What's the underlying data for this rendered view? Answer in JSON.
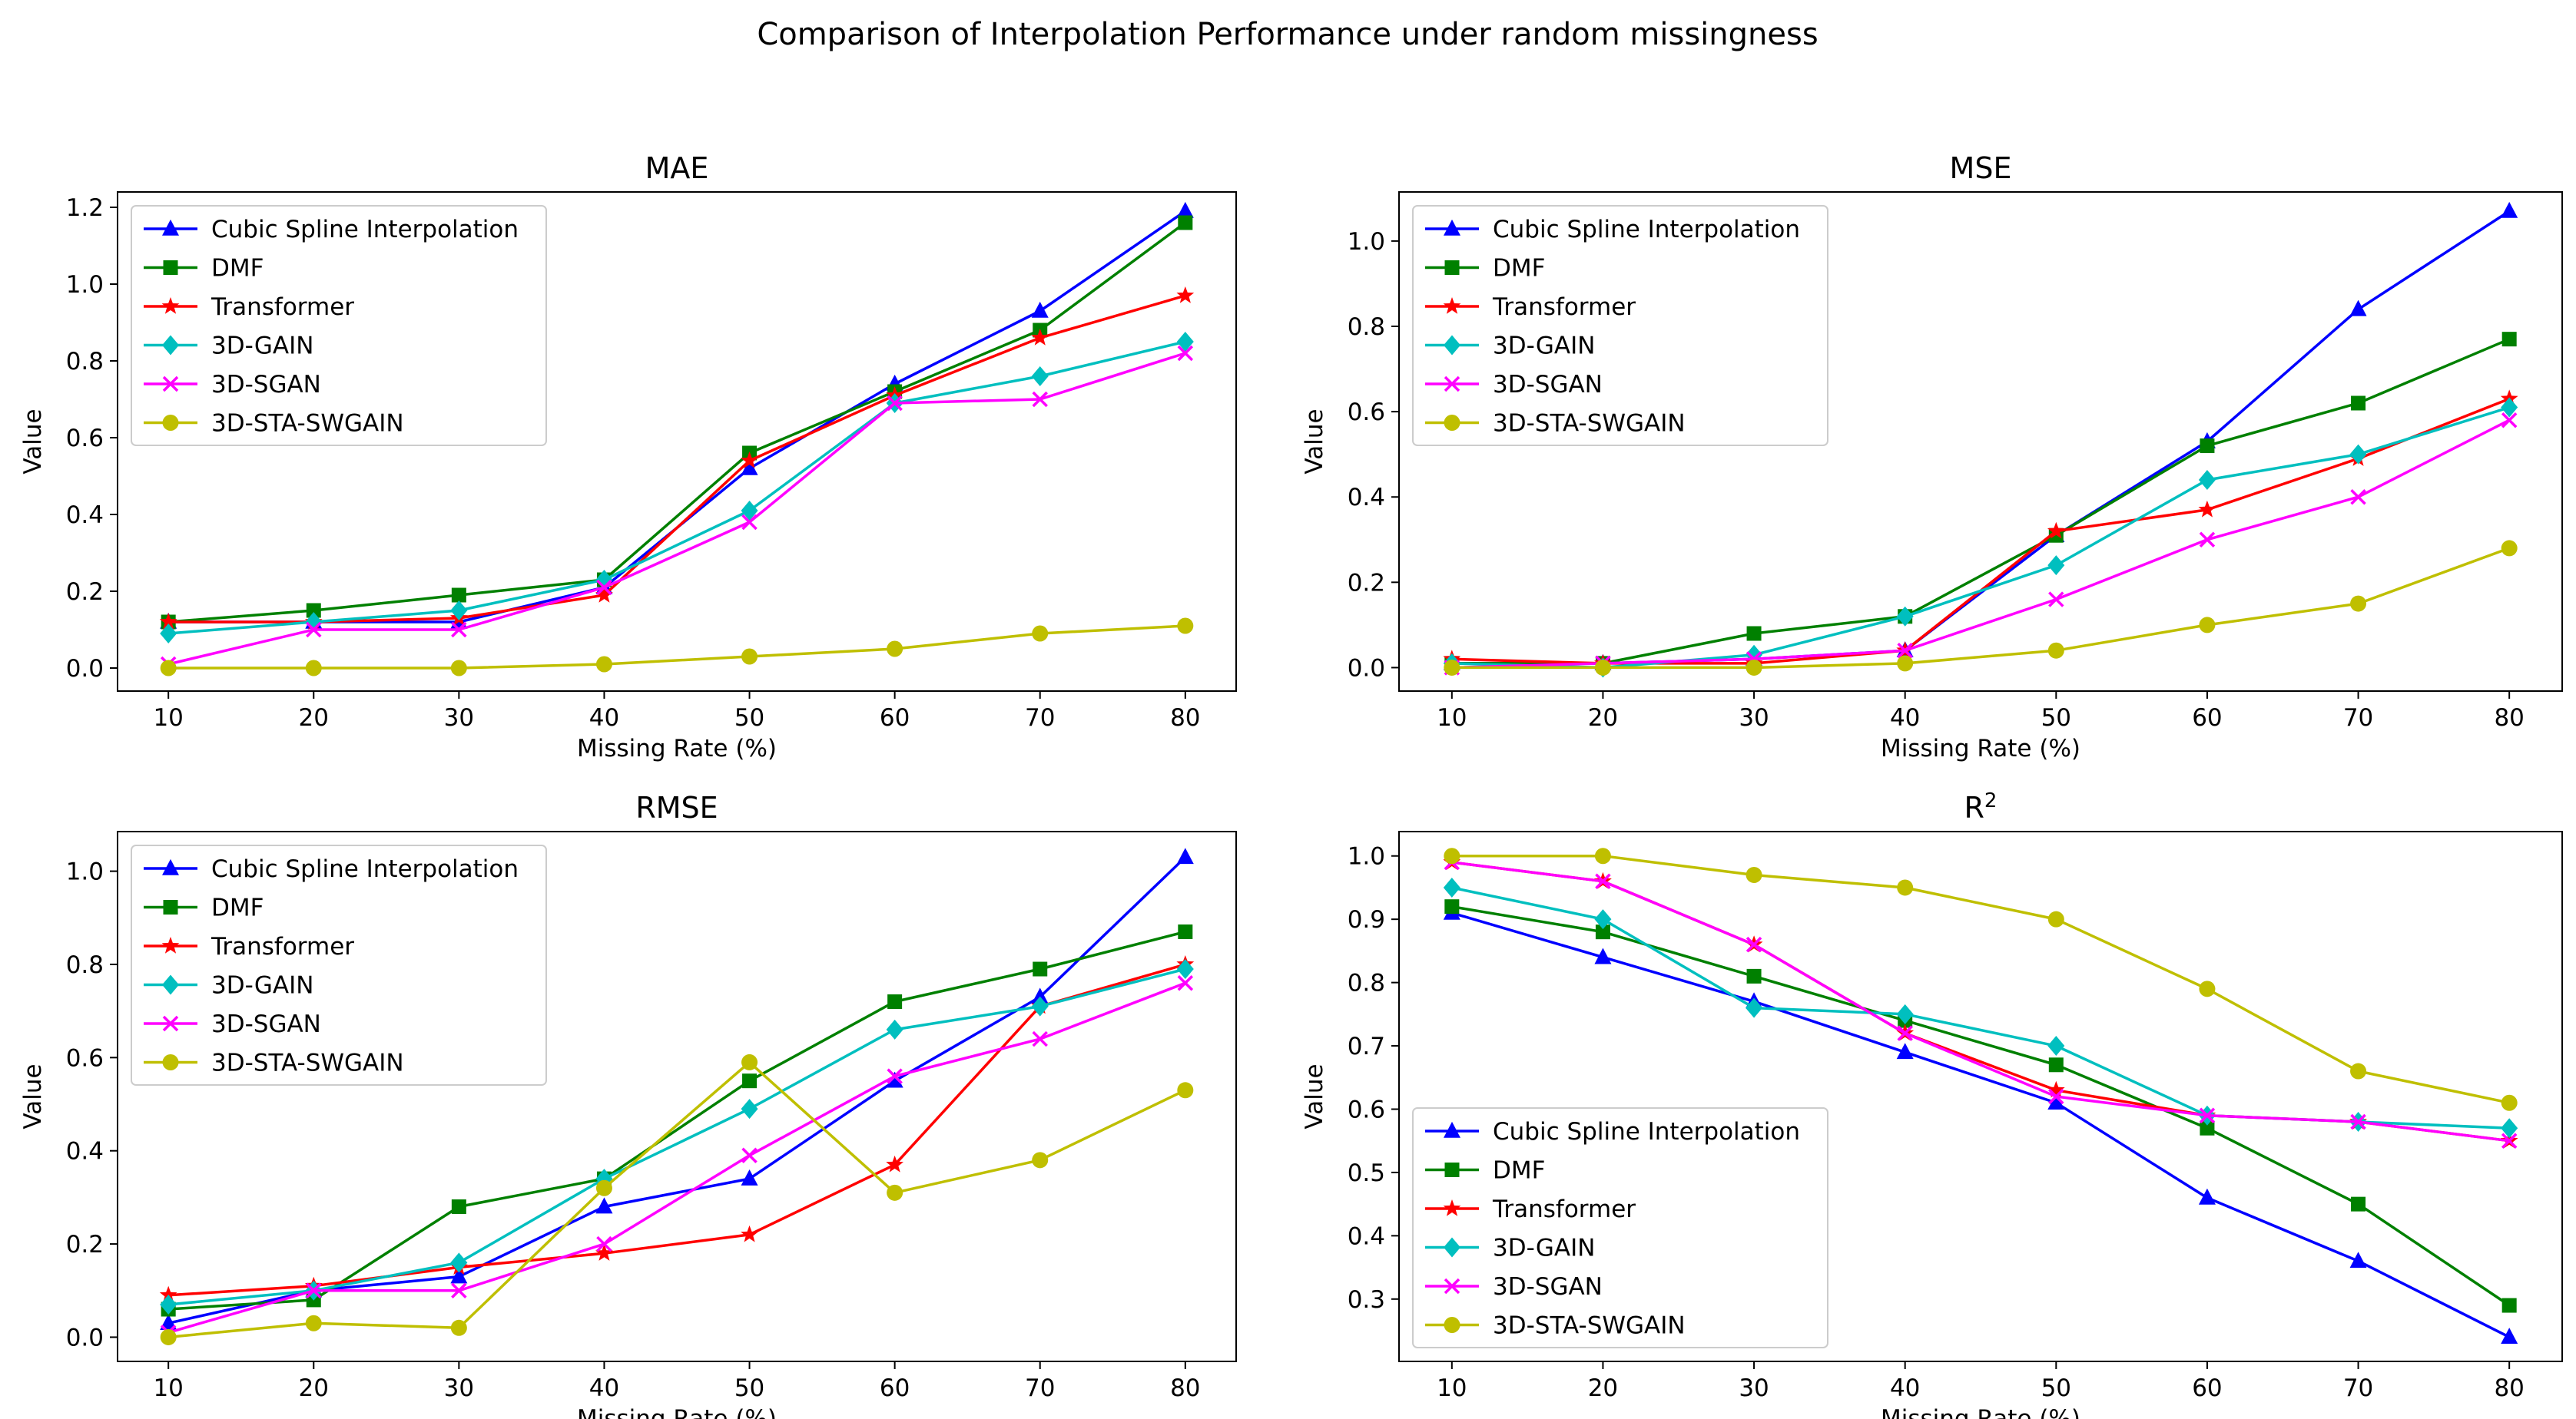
{
  "figure": {
    "suptitle": "Comparison of Interpolation Performance under random missingness"
  },
  "series_styles": [
    {
      "name": "Cubic Spline Interpolation",
      "color": "#0000ff",
      "marker": "triangle"
    },
    {
      "name": "DMF",
      "color": "#008000",
      "marker": "square"
    },
    {
      "name": "Transformer",
      "color": "#ff0000",
      "marker": "star"
    },
    {
      "name": "3D-GAIN",
      "color": "#00bfbf",
      "marker": "diamond"
    },
    {
      "name": "3D-SGAN",
      "color": "#ff00ff",
      "marker": "x"
    },
    {
      "name": "3D-STA-SWGAIN",
      "color": "#bfbf00",
      "marker": "circle"
    }
  ],
  "chart_data": [
    {
      "id": "mae",
      "type": "line",
      "title": "MAE",
      "title_sup": "",
      "xlabel": "Missing Rate (%)",
      "ylabel": "Value",
      "x": [
        10,
        20,
        30,
        40,
        50,
        60,
        70,
        80
      ],
      "xlim": [
        6.5,
        83.5
      ],
      "ylim": [
        -0.06,
        1.24
      ],
      "yticks": [
        0.0,
        0.2,
        0.4,
        0.6,
        0.8,
        1.0,
        1.2
      ],
      "ytick_labels": [
        "0.0",
        "0.2",
        "0.4",
        "0.6",
        "0.8",
        "1.0",
        "1.2"
      ],
      "legend_loc": "upper-left",
      "series": [
        {
          "name": "Cubic Spline Interpolation",
          "values": [
            0.12,
            0.12,
            0.12,
            0.21,
            0.52,
            0.74,
            0.93,
            1.19
          ]
        },
        {
          "name": "DMF",
          "values": [
            0.12,
            0.15,
            0.19,
            0.23,
            0.56,
            0.72,
            0.88,
            1.16
          ]
        },
        {
          "name": "Transformer",
          "values": [
            0.12,
            0.12,
            0.13,
            0.19,
            0.54,
            0.71,
            0.86,
            0.97
          ]
        },
        {
          "name": "3D-GAIN",
          "values": [
            0.09,
            0.12,
            0.15,
            0.23,
            0.41,
            0.69,
            0.76,
            0.85
          ]
        },
        {
          "name": "3D-SGAN",
          "values": [
            0.01,
            0.1,
            0.1,
            0.21,
            0.38,
            0.69,
            0.7,
            0.82
          ]
        },
        {
          "name": "3D-STA-SWGAIN",
          "values": [
            0.0,
            0.0,
            0.0,
            0.01,
            0.03,
            0.05,
            0.09,
            0.11
          ]
        }
      ]
    },
    {
      "id": "mse",
      "type": "line",
      "title": "MSE",
      "title_sup": "",
      "xlabel": "Missing Rate (%)",
      "ylabel": "Value",
      "x": [
        10,
        20,
        30,
        40,
        50,
        60,
        70,
        80
      ],
      "xlim": [
        6.5,
        83.5
      ],
      "ylim": [
        -0.055,
        1.115
      ],
      "yticks": [
        0.0,
        0.2,
        0.4,
        0.6,
        0.8,
        1.0
      ],
      "ytick_labels": [
        "0.0",
        "0.2",
        "0.4",
        "0.6",
        "0.8",
        "1.0"
      ],
      "legend_loc": "upper-left",
      "series": [
        {
          "name": "Cubic Spline Interpolation",
          "values": [
            0.01,
            0.01,
            0.02,
            0.04,
            0.31,
            0.53,
            0.84,
            1.07
          ]
        },
        {
          "name": "DMF",
          "values": [
            0.01,
            0.01,
            0.08,
            0.12,
            0.31,
            0.52,
            0.62,
            0.77
          ]
        },
        {
          "name": "Transformer",
          "values": [
            0.02,
            0.01,
            0.01,
            0.04,
            0.32,
            0.37,
            0.49,
            0.63
          ]
        },
        {
          "name": "3D-GAIN",
          "values": [
            0.01,
            0.0,
            0.03,
            0.12,
            0.24,
            0.44,
            0.5,
            0.61
          ]
        },
        {
          "name": "3D-SGAN",
          "values": [
            0.0,
            0.01,
            0.02,
            0.04,
            0.16,
            0.3,
            0.4,
            0.58
          ]
        },
        {
          "name": "3D-STA-SWGAIN",
          "values": [
            0.0,
            0.0,
            0.0,
            0.01,
            0.04,
            0.1,
            0.15,
            0.28
          ]
        }
      ]
    },
    {
      "id": "rmse",
      "type": "line",
      "title": "RMSE",
      "title_sup": "",
      "xlabel": "Missing Rate (%)",
      "ylabel": "Value",
      "x": [
        10,
        20,
        30,
        40,
        50,
        60,
        70,
        80
      ],
      "xlim": [
        6.5,
        83.5
      ],
      "ylim": [
        -0.052,
        1.085
      ],
      "yticks": [
        0.0,
        0.2,
        0.4,
        0.6,
        0.8,
        1.0
      ],
      "ytick_labels": [
        "0.0",
        "0.2",
        "0.4",
        "0.6",
        "0.8",
        "1.0"
      ],
      "legend_loc": "upper-left",
      "series": [
        {
          "name": "Cubic Spline Interpolation",
          "values": [
            0.03,
            0.1,
            0.13,
            0.28,
            0.34,
            0.55,
            0.73,
            1.03
          ]
        },
        {
          "name": "DMF",
          "values": [
            0.06,
            0.08,
            0.28,
            0.34,
            0.55,
            0.72,
            0.79,
            0.87
          ]
        },
        {
          "name": "Transformer",
          "values": [
            0.09,
            0.11,
            0.15,
            0.18,
            0.22,
            0.37,
            0.71,
            0.8
          ]
        },
        {
          "name": "3D-GAIN",
          "values": [
            0.07,
            0.1,
            0.16,
            0.34,
            0.49,
            0.66,
            0.71,
            0.79
          ]
        },
        {
          "name": "3D-SGAN",
          "values": [
            0.01,
            0.1,
            0.1,
            0.2,
            0.39,
            0.56,
            0.64,
            0.76
          ]
        },
        {
          "name": "3D-STA-SWGAIN",
          "values": [
            0.0,
            0.03,
            0.02,
            0.32,
            0.59,
            0.31,
            0.38,
            0.53
          ]
        }
      ]
    },
    {
      "id": "r2",
      "type": "line",
      "title": "R",
      "title_sup": "2",
      "xlabel": "Missing Rate (%)",
      "ylabel": "Value",
      "x": [
        10,
        20,
        30,
        40,
        50,
        60,
        70,
        80
      ],
      "xlim": [
        6.5,
        83.5
      ],
      "ylim": [
        0.2015,
        1.0385
      ],
      "yticks": [
        0.3,
        0.4,
        0.5,
        0.6,
        0.7,
        0.8,
        0.9,
        1.0
      ],
      "ytick_labels": [
        "0.3",
        "0.4",
        "0.5",
        "0.6",
        "0.7",
        "0.8",
        "0.9",
        "1.0"
      ],
      "legend_loc": "lower-left",
      "series": [
        {
          "name": "Cubic Spline Interpolation",
          "values": [
            0.91,
            0.84,
            0.77,
            0.69,
            0.61,
            0.46,
            0.36,
            0.24
          ]
        },
        {
          "name": "DMF",
          "values": [
            0.92,
            0.88,
            0.81,
            0.74,
            0.67,
            0.57,
            0.45,
            0.29
          ]
        },
        {
          "name": "Transformer",
          "values": [
            0.99,
            0.96,
            0.86,
            0.72,
            0.63,
            0.59,
            0.58,
            0.55
          ]
        },
        {
          "name": "3D-GAIN",
          "values": [
            0.95,
            0.9,
            0.76,
            0.75,
            0.7,
            0.59,
            0.58,
            0.57
          ]
        },
        {
          "name": "3D-SGAN",
          "values": [
            0.99,
            0.96,
            0.86,
            0.72,
            0.62,
            0.59,
            0.58,
            0.55
          ]
        },
        {
          "name": "3D-STA-SWGAIN",
          "values": [
            1.0,
            1.0,
            0.97,
            0.95,
            0.9,
            0.79,
            0.66,
            0.61
          ]
        }
      ]
    }
  ]
}
